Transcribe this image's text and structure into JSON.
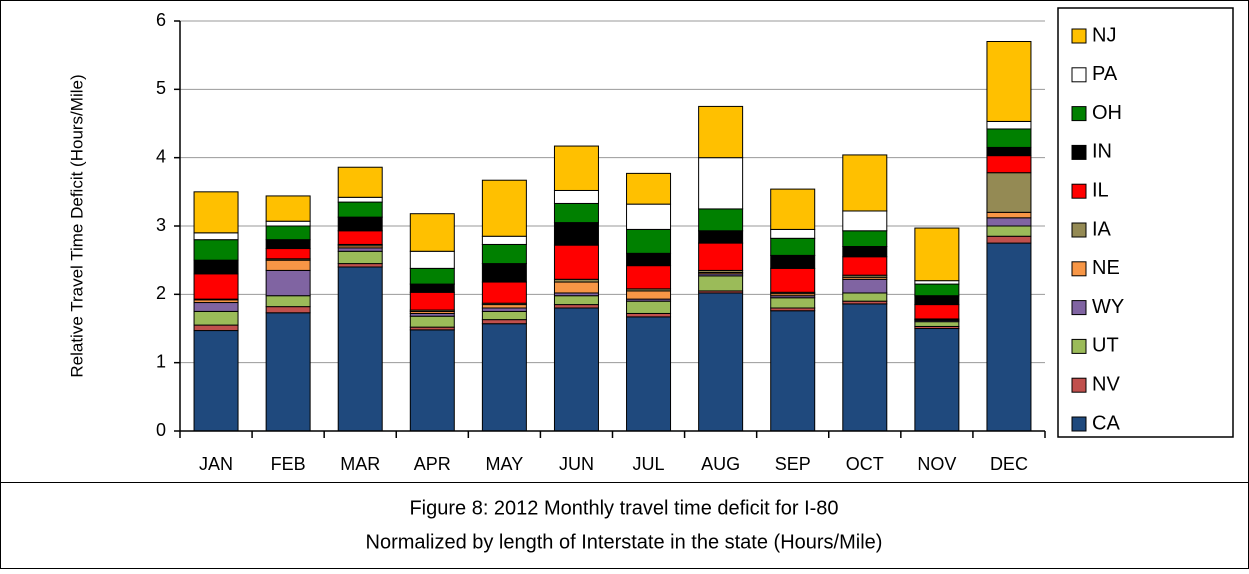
{
  "chart_data": {
    "type": "stacked_bar",
    "title": "Figure 8:  2012 Monthly travel time deficit for I-80",
    "subtitle": "Normalized by length of Interstate in the state (Hours/Mile)",
    "y_label": "Relative Travel Time Deficit (Hours/Mile)",
    "categories": [
      "JAN",
      "FEB",
      "MAR",
      "APR",
      "MAY",
      "JUN",
      "JUL",
      "AUG",
      "SEP",
      "OCT",
      "NOV",
      "DEC"
    ],
    "ylim": [
      0,
      6
    ],
    "yticks": [
      0,
      1,
      2,
      3,
      4,
      5,
      6
    ],
    "grid": true,
    "legend": "right",
    "series": [
      {
        "name": "CA",
        "color": "#1f497d",
        "values": [
          1.47,
          1.73,
          2.4,
          1.48,
          1.57,
          1.8,
          1.67,
          2.02,
          1.76,
          1.86,
          1.5,
          2.75
        ]
      },
      {
        "name": "NV",
        "color": "#c0504d",
        "values": [
          0.08,
          0.09,
          0.05,
          0.04,
          0.06,
          0.05,
          0.05,
          0.03,
          0.04,
          0.04,
          0.03,
          0.1
        ]
      },
      {
        "name": "UT",
        "color": "#9bbb59",
        "values": [
          0.2,
          0.16,
          0.18,
          0.16,
          0.12,
          0.13,
          0.18,
          0.22,
          0.15,
          0.12,
          0.07,
          0.15
        ]
      },
      {
        "name": "WY",
        "color": "#8064a2",
        "values": [
          0.13,
          0.37,
          0.05,
          0.04,
          0.05,
          0.04,
          0.03,
          0.03,
          0.03,
          0.2,
          0.02,
          0.12
        ]
      },
      {
        "name": "NE",
        "color": "#f79646",
        "values": [
          0.04,
          0.15,
          0.03,
          0.03,
          0.05,
          0.16,
          0.12,
          0.02,
          0.03,
          0.03,
          0.01,
          0.08
        ]
      },
      {
        "name": "IA",
        "color": "#948a54",
        "values": [
          0.01,
          0.02,
          0.02,
          0.02,
          0.02,
          0.04,
          0.03,
          0.03,
          0.02,
          0.03,
          0.01,
          0.58
        ]
      },
      {
        "name": "IL",
        "color": "#ff0000",
        "values": [
          0.37,
          0.15,
          0.2,
          0.26,
          0.31,
          0.5,
          0.34,
          0.4,
          0.35,
          0.27,
          0.21,
          0.25
        ]
      },
      {
        "name": "IN",
        "color": "#000000",
        "values": [
          0.2,
          0.13,
          0.2,
          0.12,
          0.27,
          0.33,
          0.18,
          0.18,
          0.19,
          0.15,
          0.13,
          0.12
        ]
      },
      {
        "name": "OH",
        "color": "#008000",
        "values": [
          0.3,
          0.2,
          0.22,
          0.23,
          0.28,
          0.28,
          0.35,
          0.32,
          0.25,
          0.23,
          0.17,
          0.27
        ]
      },
      {
        "name": "PA",
        "color": "#ffffff",
        "values": [
          0.1,
          0.07,
          0.07,
          0.25,
          0.12,
          0.19,
          0.37,
          0.75,
          0.13,
          0.29,
          0.05,
          0.11
        ]
      },
      {
        "name": "NJ",
        "color": "#ffc000",
        "values": [
          0.6,
          0.37,
          0.44,
          0.55,
          0.82,
          0.65,
          0.45,
          0.75,
          0.59,
          0.82,
          0.77,
          1.17
        ]
      }
    ]
  }
}
